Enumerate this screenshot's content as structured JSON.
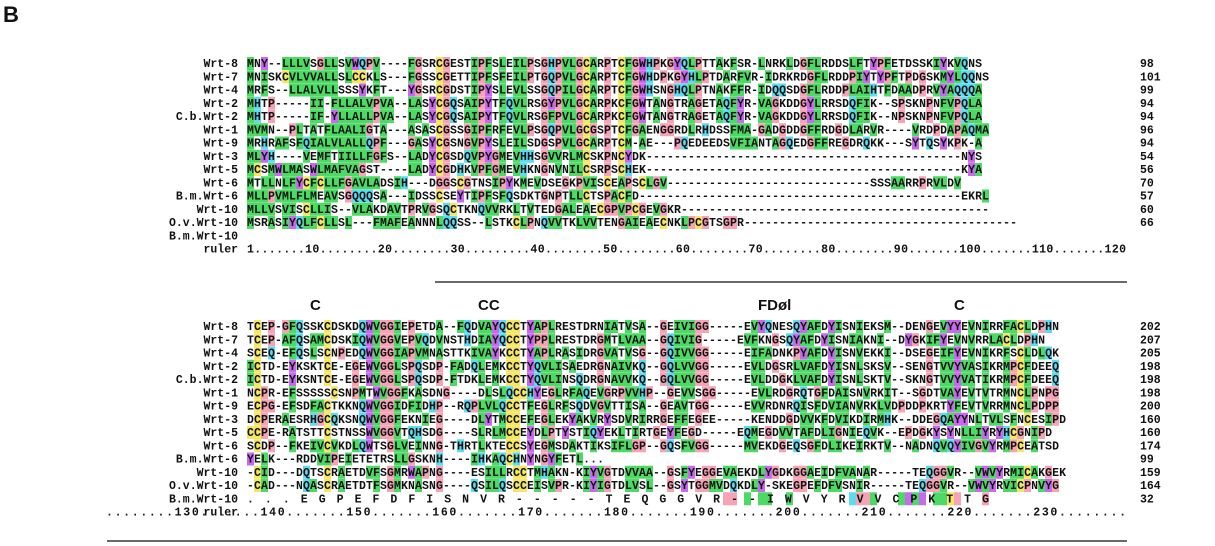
{
  "figure": {
    "panel_label": "B",
    "colors": {
      "hydrophobic": "#4cd964",
      "cysteine": "#f5e663",
      "aromatic": "#c969f0",
      "polar": "#5cdcf0",
      "special": "#f5a3b5"
    }
  },
  "block1": {
    "rows": [
      {
        "name": "Wrt-8",
        "seq": "MNY--LLLVSGLLSVWQPV----FGSRCGESTIPFSLEILPSGHPVLGCARPTCFGWHPKGYQLPTTAKFSR-LNRKLDGFLRDDSLFTYPFETDSSKIYKVQNS",
        "end": "98"
      },
      {
        "name": "Wrt-7",
        "seq": "MNISKCVLVVALLSLCCKLS---FGSSCGETTIPFSFEILPTGQPVLGCARPTCFGWHDPKGYHLPTDARFVR-IDRKRDGFLRDDPIYTYPFTPDGSKMYLQQNS",
        "end": "101"
      },
      {
        "name": "Wrt-4",
        "seq": "MRFS--LLALVLLSSSYKFT---YGSRCGDSTIPYSLEVLSSGQPILGCARPTCFGWHSNGHQLPTNAKFFR-IDQQSDGFLRDDPLAIHTFDAADPRVYAQQQA",
        "end": "99"
      },
      {
        "name": "Wrt-2",
        "seq": "MHTP-----II-FLLALVPVA--LASYCGQSAIPYTFQVLRSGYPVLGCARPKCFGWTANGTRAGETAQFYR-VAGKDDGYLRRSDQFIK--SPSKNPNFVPQLA",
        "end": "94"
      },
      {
        "name": "C.b.Wrt-2",
        "seq": "MHTP-----IF-YLLALLPVA--LASYCGQSAIPYTFQVLRSGFPVLGCARPKCFGWTANGTRAGETAQFYR-VAGKDDGYLRRSDQFIK--NPSKNPNFVPQLA",
        "end": "94"
      },
      {
        "name": "Wrt-1",
        "seq": "MVMN--PLTATFLAALIGTA---ASASCGSSGIPFRFEVLPSGQPVLGCGSPTCFGAENGGRDLRHDSSFMA-GADGDDGFFRDGDLARVR----VRDPDAPAQMA",
        "end": "96"
      },
      {
        "name": "Wrt-9",
        "seq": "MRHRAFSFQIALVLALLQPF---GASYCGSNGVPYSLEILSDGSPVLGCARPTCM-AE---PQEDEEDSVFIANTAGQEDGFFREGDRQKK---SYTQSYKPK-A",
        "end": "94"
      },
      {
        "name": "Wrt-3",
        "seq": "MLYH----VEMFTIILLFGFS--LADYCGSDQVPYGMEVHHSGVVRLMCSKPNCYDK---------------------------------------------NYS",
        "end": "54"
      },
      {
        "name": "Wrt-5",
        "seq": "MCSMWLMASWLMAFVAGST----LADYCGDHKVPFGMEVHKNGNVNILCSRPSCHEK---------------------------------------------KYA",
        "end": "56"
      },
      {
        "name": "Wrt-6",
        "seq": "MTLLNLFYCFCLLFGAVLADSIH---DGGSCGTNSIPYKMEVDSEGKPVISCEAPSCLGV-----------------------------SSSAARRPRVLDV",
        "end": "70"
      },
      {
        "name": "B.m.Wrt-6",
        "seq": "MLLPVMLFLMEAVSGQQQSA---IDSSCSEYTIPFSFQSDKTGNPTLLCTSPACFD----------------------------------------------EKRL",
        "end": "57"
      },
      {
        "name": "Wrt-10",
        "seq": "MLLVSVISCLLIS--VLAKDAVTPRVGSQCTKNQVVRKLTVTEDGALEAECGPVPCGEVGKR--------------------------------------------",
        "end": "60"
      },
      {
        "name": "O.v.Wrt-10",
        "seq": "MSRASIYQLFCLLSL---FMAFEANNNLQQSS--LSTKCLPNQVVTKLVVTENGAIEAECNKLPCGTSGPR---------------------------------------",
        "end": "66"
      },
      {
        "name": "B.m.Wrt-10",
        "seq": "",
        "end": ""
      }
    ],
    "ruler": {
      "label": "ruler",
      "text": "1.......10........20........30.........40........50........60........70........80........90.......100.......110.......120"
    }
  },
  "block2": {
    "motifs": [
      {
        "label": "C",
        "col": 9
      },
      {
        "label": "CC",
        "col": 33
      },
      {
        "label": "FDøl",
        "col": 73
      },
      {
        "label": "C",
        "col": 101
      }
    ],
    "rows": [
      {
        "name": "Wrt-8",
        "seq": "TCEP-GFQSSKCDSKDQWVGGIEPETDA--FQDVAYQCCTYAPLRESTDRNIATVSA--GEIVIGG-----EVYQNESQYAFDYISNIEKSM--DENGEVYYEVNIRRFACLDPHN",
        "end": "202"
      },
      {
        "name": "Wrt-7",
        "seq": "TCEP-AFQSAMCDSKIQWVGGVEPVQDVNSTHDIAYQCCTYPPLRESTDRGMTLVAA--GQIVIG-----EVFKNGSQYAFDYISNIAKNI--DYGKIFYEVNVRRLACLDPHN",
        "end": "207"
      },
      {
        "name": "Wrt-4",
        "seq": "SCEQ-EFQSLSCNPEDQWVGGIAPVMNASTTKIVAYKCCTYAPLRASIDRGVATVSG--GQIVVGG-----EIFADNKPYAFDYISNVEKKI--DSEGEIFYEVNIKRFSCLDLQK",
        "end": "205"
      },
      {
        "name": "Wrt-2",
        "seq": "ICTD-EYKSKTCE-EGEWVGGLSPQSDP-FADQLEMKCCTYQVLISAEDRGNAIVKQ--GQLVVGG-----EVLDGSRLVAFDYISNLSKSV--SENGTVVYVASIKRMPCFDEEQ",
        "end": "198"
      },
      {
        "name": "C.b.Wrt-2",
        "seq": "ICTD-EYKSNTCE-EGEWVGGLSPQSDP-FTDKLEMKCCTYQVLINSQDRGNAVVKQ--GQLVVGG-----EVLDDGKLVAFDYISNLSKTV--SKNGTVVYVATIKRMPCFDEEQ",
        "end": "198"
      },
      {
        "name": "Wrt-1",
        "seq": "NCPR-EFSSSSSCSNPMTWVGGFKASDNG----DLSLQCCHYEGLRFAQEVGRPVVHP--GEVVSGG-----EVLRDGRQTGFDAISNVRKIT--SGDTVAYEVTVTRMNCLPNPG",
        "end": "198"
      },
      {
        "name": "Wrt-9",
        "seq": "ECPG-EFSDFACTKKNQWVGGIDFIDHP--RQPLVLQCCTFEGLRFSQDVGVTTISA--GEAVTGG-----EVVRDNRQISFDVIANVRKLVDPDDPKRTYFEVTVRRMNCLPDPP",
        "end": "200"
      },
      {
        "name": "Wrt-3",
        "seq": "DCPERAESRHGCQKSNQWVGGFEKNIEG----DLYTMCCEFEGLEKYAKVRYSDVRIRRGEFFEGEE-----KENDDGDVVKFDVIKDIRMHK--DDEGQAYYNLTVLSFNCESIPD",
        "end": "160"
      },
      {
        "name": "Wrt-5",
        "seq": "CCPE-RATSTTCSTNSSWVGGVTQHSDG----SLRLMCCEYDLPTYSTIQYEKLTIRTGEYFEGD-----EQMEGDVVTAFDLIGNIEQVK--EPDGKYSYNLLIYRYHCGNIPD",
        "end": "160"
      },
      {
        "name": "Wrt-6",
        "seq": "SCDP--FKEIVCVKDLQWTSGLVEINNG-THRTLKTECCSYEGMSDAKTIKSIFLGP--GQSFVGG-----MVEKDGEQSGFDLIKEIRKTV--NADNQVQYIVGVYRMPCEATSD",
        "end": "174"
      },
      {
        "name": "B.m.Wrt-6",
        "seq": "YELK---RDDVIPEIETETRSLLGSKNH----IHKAQCHNYNGYFETL...",
        "end": "99"
      },
      {
        "name": "Wrt-10",
        "seq": "-CID---DQTSCRAETDVFSGMRWAPNG----ESILLRCCTMHAKN-KIYVGTDVVAA--GSFYEGGEVAEKDLYGDKGGAEIDFVANAR-----TEQGGVR--VWVYRMICAKGEK",
        "end": "159"
      },
      {
        "name": "O.v.Wrt-10",
        "seq": "-CAD---NQASCRAETDTFSGMKNASNG----QSILQSCCEISVPR-KIYIGTDLVSL--GSYTGGMVDQKDLY-SKEGPEFDFVSNIR-----TEQGGVR--VWVYRVICPNVYG",
        "end": "164"
      },
      {
        "name": "B.m.Wrt-10",
        "seq": "                                                                ...EGPEFDFISNVR-----TEQGGVR--IWVYRVVCPKTTG",
        "end": "32"
      }
    ],
    "ruler": {
      "label": "ruler",
      "text": "........130.......140.......150.......160.......170.......180.......190.......200.......210.......220.......230........"
    }
  }
}
